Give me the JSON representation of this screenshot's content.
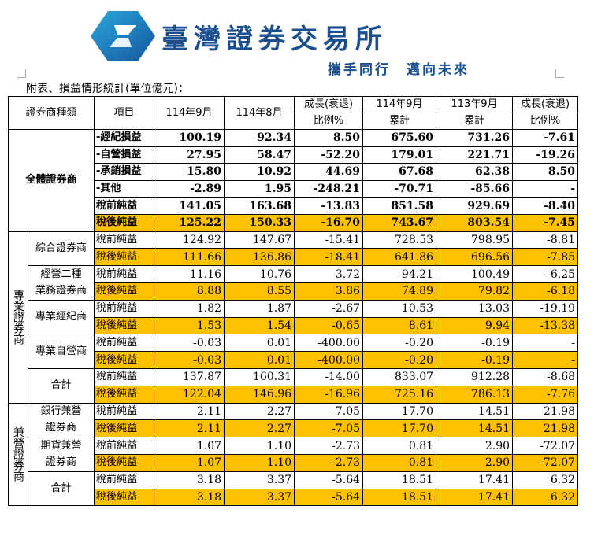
{
  "header": {
    "brand": "臺灣證券交易所",
    "slogan": "攜手同行　邁向未來",
    "caption": "附表、損益情形統計(單位億元)："
  },
  "colors": {
    "highlight": "#ffc000",
    "brand": "#1b4f8f"
  },
  "table": {
    "columns": [
      "證券商種類",
      "項目",
      "114年9月",
      "114年8月",
      "成長(衰退)",
      "114年9月",
      "113年9月",
      "成長(衰退)"
    ],
    "subcolumns": [
      "比例%",
      "累計",
      "累計",
      "比例%"
    ],
    "all": {
      "label": "全體證券商",
      "rows": [
        {
          "item": "-經紀損益",
          "v": [
            "100.19",
            "92.34",
            "8.50",
            "675.60",
            "731.26",
            "-7.61"
          ]
        },
        {
          "item": "-自營損益",
          "v": [
            "27.95",
            "58.47",
            "-52.20",
            "179.01",
            "221.71",
            "-19.26"
          ]
        },
        {
          "item": "-承銷損益",
          "v": [
            "15.80",
            "10.92",
            "44.69",
            "67.68",
            "62.38",
            "8.50"
          ]
        },
        {
          "item": "-其他",
          "v": [
            "-2.89",
            "1.95",
            "-248.21",
            "-70.71",
            "-85.66",
            "-"
          ]
        },
        {
          "item": "稅前純益",
          "v": [
            "141.05",
            "163.68",
            "-13.83",
            "851.58",
            "929.69",
            "-8.40"
          ]
        },
        {
          "item": "稅後純益",
          "v": [
            "125.22",
            "150.33",
            "-16.70",
            "743.67",
            "803.54",
            "-7.45"
          ]
        }
      ]
    },
    "groups": [
      {
        "label": "專業證券商",
        "subs": [
          {
            "label": "綜合證券商",
            "rows": [
              {
                "item": "稅前純益",
                "v": [
                  "124.92",
                  "147.67",
                  "-15.41",
                  "728.53",
                  "798.95",
                  "-8.81"
                ]
              },
              {
                "item": "稅後純益",
                "v": [
                  "111.66",
                  "136.86",
                  "-18.41",
                  "641.86",
                  "696.56",
                  "-7.85"
                ]
              }
            ]
          },
          {
            "label": "經營二種",
            "label2": "業務證券商",
            "rows": [
              {
                "item": "稅前純益",
                "v": [
                  "11.16",
                  "10.76",
                  "3.72",
                  "94.21",
                  "100.49",
                  "-6.25"
                ]
              },
              {
                "item": "稅後純益",
                "v": [
                  "8.88",
                  "8.55",
                  "3.86",
                  "74.89",
                  "79.82",
                  "-6.18"
                ]
              }
            ]
          },
          {
            "label": "專業經紀商",
            "rows": [
              {
                "item": "稅前純益",
                "v": [
                  "1.82",
                  "1.87",
                  "-2.67",
                  "10.53",
                  "13.03",
                  "-19.19"
                ]
              },
              {
                "item": "稅後純益",
                "v": [
                  "1.53",
                  "1.54",
                  "-0.65",
                  "8.61",
                  "9.94",
                  "-13.38"
                ]
              }
            ]
          },
          {
            "label": "專業自營商",
            "rows": [
              {
                "item": "稅前純益",
                "v": [
                  "-0.03",
                  "0.01",
                  "-400.00",
                  "-0.20",
                  "-0.19",
                  "-"
                ]
              },
              {
                "item": "稅後純益",
                "v": [
                  "-0.03",
                  "0.01",
                  "-400.00",
                  "-0.20",
                  "-0.19",
                  "-"
                ]
              }
            ]
          },
          {
            "label": "合計",
            "rows": [
              {
                "item": "稅前純益",
                "v": [
                  "137.87",
                  "160.31",
                  "-14.00",
                  "833.07",
                  "912.28",
                  "-8.68"
                ]
              },
              {
                "item": "稅後純益",
                "v": [
                  "122.04",
                  "146.96",
                  "-16.96",
                  "725.16",
                  "786.13",
                  "-7.76"
                ]
              }
            ]
          }
        ]
      },
      {
        "label": "兼營證券商",
        "subs": [
          {
            "label": "銀行兼營",
            "label2": "證券商",
            "rows": [
              {
                "item": "稅前純益",
                "v": [
                  "2.11",
                  "2.27",
                  "-7.05",
                  "17.70",
                  "14.51",
                  "21.98"
                ]
              },
              {
                "item": "稅後純益",
                "v": [
                  "2.11",
                  "2.27",
                  "-7.05",
                  "17.70",
                  "14.51",
                  "21.98"
                ]
              }
            ]
          },
          {
            "label": "期貨兼營",
            "label2": "證券商",
            "rows": [
              {
                "item": "稅前純益",
                "v": [
                  "1.07",
                  "1.10",
                  "-2.73",
                  "0.81",
                  "2.90",
                  "-72.07"
                ]
              },
              {
                "item": "稅後純益",
                "v": [
                  "1.07",
                  "1.10",
                  "-2.73",
                  "0.81",
                  "2.90",
                  "-72.07"
                ]
              }
            ]
          },
          {
            "label": "合計",
            "rows": [
              {
                "item": "稅前純益",
                "v": [
                  "3.18",
                  "3.37",
                  "-5.64",
                  "18.51",
                  "17.41",
                  "6.32"
                ]
              },
              {
                "item": "稅後純益",
                "v": [
                  "3.18",
                  "3.37",
                  "-5.64",
                  "18.51",
                  "17.41",
                  "6.32"
                ]
              }
            ]
          }
        ]
      }
    ]
  }
}
